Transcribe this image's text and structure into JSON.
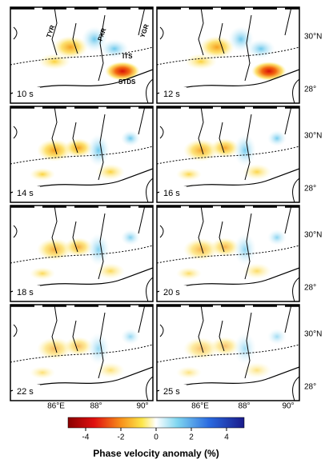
{
  "panels": [
    {
      "label": "10 s"
    },
    {
      "label": "12 s"
    },
    {
      "label": "14 s"
    },
    {
      "label": "16 s"
    },
    {
      "label": "18 s"
    },
    {
      "label": "20 s"
    },
    {
      "label": "22 s"
    },
    {
      "label": "25 s"
    }
  ],
  "annotations": [
    "TYR",
    "PXR",
    "YGR",
    "ITS",
    "STDS"
  ],
  "lat_labels": [
    "30°N",
    "28°"
  ],
  "lon_labels": [
    "86°E",
    "88°",
    "90°"
  ],
  "colorbar": {
    "range": [
      -5,
      5
    ],
    "ticks": [
      -4,
      -2,
      0,
      2,
      4
    ],
    "label": "Phase velocity anomaly (%)"
  }
}
